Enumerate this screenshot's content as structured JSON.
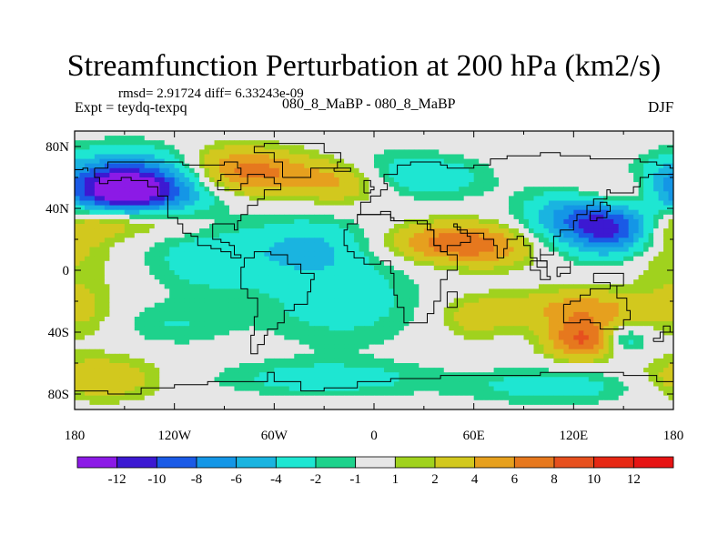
{
  "chart_data": {
    "type": "heatmap",
    "title": "Streamfunction Perturbation at 200 hPa (km2/s)",
    "stats_label": "rmsd= 2.91724 diff= 6.33243e-09",
    "experiment_label": "Expt = teydq-texpq",
    "center_label": "080_8_MaBP - 080_8_MaBP",
    "season_label": "DJF",
    "x_axis": {
      "range": [
        -180,
        180
      ],
      "ticks": [
        -180,
        -120,
        -60,
        0,
        60,
        120,
        180
      ],
      "tick_labels": [
        "180",
        "120W",
        "60W",
        "0",
        "60E",
        "120E",
        "180"
      ]
    },
    "y_axis": {
      "range": [
        -90,
        90
      ],
      "ticks": [
        80,
        40,
        0,
        -40,
        -80
      ],
      "tick_labels": [
        "80N",
        "40N",
        "0",
        "40S",
        "80S"
      ]
    },
    "colorbar": {
      "levels": [
        -12,
        -10,
        -8,
        -6,
        -4,
        -2,
        -1,
        1,
        2,
        4,
        6,
        8,
        10,
        12
      ],
      "level_labels": [
        "-12",
        "-10",
        "-8",
        "-6",
        "-4",
        "-2",
        "-1",
        "1",
        "2",
        "4",
        "6",
        "8",
        "10",
        "12"
      ],
      "colors": [
        "#8c1ae6",
        "#3c19d2",
        "#1a5ae6",
        "#1496e6",
        "#1ab4e0",
        "#1ee6d2",
        "#1ed28c",
        "#e6e6e6",
        "#a0d21e",
        "#d2c81e",
        "#e6a01e",
        "#e6781e",
        "#e6501e",
        "#e62814",
        "#e61414"
      ]
    },
    "field_centers": [
      {
        "lon": -145,
        "lat": 52,
        "value": -12,
        "sx": 30,
        "sy": 15
      },
      {
        "lon": -160,
        "lat": 45,
        "value": -6,
        "sx": 28,
        "sy": 15
      },
      {
        "lon": -170,
        "lat": 33,
        "value": 7,
        "sx": 22,
        "sy": 10
      },
      {
        "lon": -135,
        "lat": 33,
        "value": 6,
        "sx": 22,
        "sy": 8
      },
      {
        "lon": -88,
        "lat": 65,
        "value": 5,
        "sx": 22,
        "sy": 11
      },
      {
        "lon": -60,
        "lat": 62,
        "value": 4,
        "sx": 22,
        "sy": 10
      },
      {
        "lon": -20,
        "lat": 57,
        "value": 4,
        "sx": 18,
        "sy": 10
      },
      {
        "lon": 40,
        "lat": 60,
        "value": -3,
        "sx": 22,
        "sy": 10
      },
      {
        "lon": 5,
        "lat": 65,
        "value": -2,
        "sx": 20,
        "sy": 10
      },
      {
        "lon": -40,
        "lat": 15,
        "value": -4,
        "sx": 28,
        "sy": 14
      },
      {
        "lon": -100,
        "lat": 5,
        "value": -3,
        "sx": 25,
        "sy": 14
      },
      {
        "lon": -20,
        "lat": -20,
        "value": -3,
        "sx": 35,
        "sy": 20
      },
      {
        "lon": 60,
        "lat": -30,
        "value": 3,
        "sx": 16,
        "sy": 10
      },
      {
        "lon": 40,
        "lat": 18,
        "value": 6,
        "sx": 24,
        "sy": 9
      },
      {
        "lon": 70,
        "lat": 15,
        "value": 4,
        "sx": 20,
        "sy": 10
      },
      {
        "lon": 145,
        "lat": 25,
        "value": -9,
        "sx": 20,
        "sy": 12
      },
      {
        "lon": 120,
        "lat": 35,
        "value": -6,
        "sx": 22,
        "sy": 12
      },
      {
        "lon": 150,
        "lat": 50,
        "value": 4,
        "sx": 20,
        "sy": 8
      },
      {
        "lon": 125,
        "lat": -45,
        "value": 8,
        "sx": 15,
        "sy": 9
      },
      {
        "lon": 125,
        "lat": -25,
        "value": 5,
        "sx": 30,
        "sy": 9
      },
      {
        "lon": -165,
        "lat": -70,
        "value": 4,
        "sx": 25,
        "sy": 10
      },
      {
        "lon": 110,
        "lat": -75,
        "value": -3,
        "sx": 40,
        "sy": 8
      },
      {
        "lon": -30,
        "lat": -70,
        "value": -3,
        "sx": 45,
        "sy": 8
      },
      {
        "lon": 150,
        "lat": -45,
        "value": -4,
        "sx": 10,
        "sy": 7
      },
      {
        "lon": -120,
        "lat": -35,
        "value": -2,
        "sx": 25,
        "sy": 10
      },
      {
        "lon": 175,
        "lat": 15,
        "value": 3,
        "sx": 20,
        "sy": 15
      },
      {
        "lon": -175,
        "lat": -25,
        "value": 2,
        "sx": 15,
        "sy": 15
      }
    ]
  }
}
